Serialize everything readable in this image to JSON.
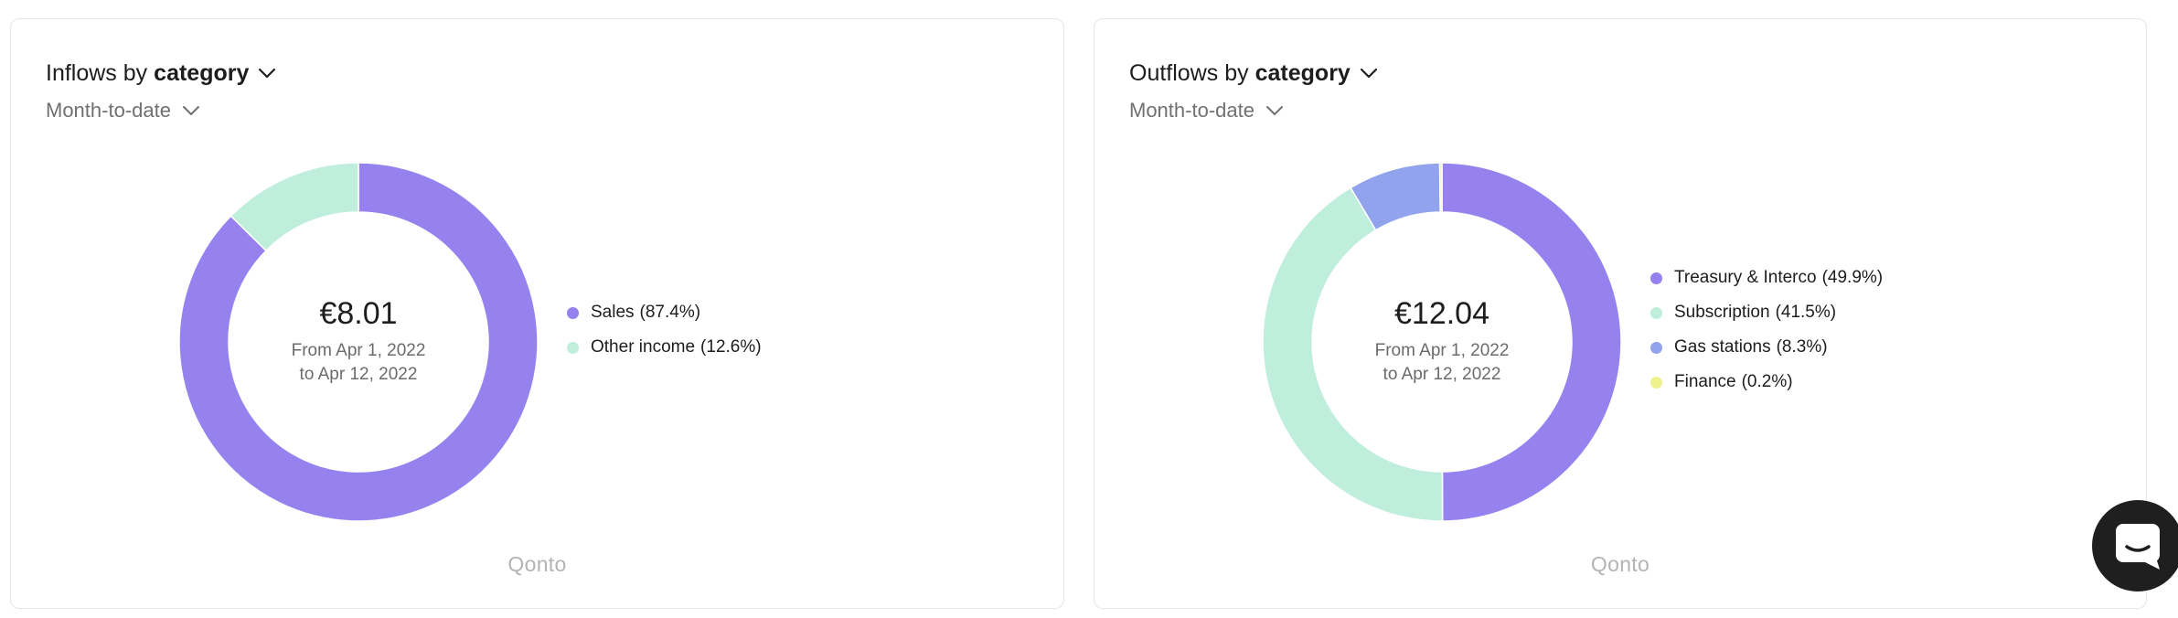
{
  "brand": "Qonto",
  "chart_data": [
    {
      "type": "pie",
      "title": "Inflows by",
      "dimension": "category",
      "period": "Month-to-date",
      "total": "€8.01",
      "range": [
        "From Apr 1, 2022",
        "to Apr 12, 2022"
      ],
      "legend_position": "right",
      "slices": [
        {
          "label": "Sales",
          "value": 87.4,
          "pct_label": "(87.4%)",
          "color": "#9682ee"
        },
        {
          "label": "Other income",
          "value": 12.6,
          "pct_label": "(12.6%)",
          "color": "#bfeedd"
        }
      ]
    },
    {
      "type": "pie",
      "title": "Outflows by",
      "dimension": "category",
      "period": "Month-to-date",
      "total": "€12.04",
      "range": [
        "From Apr 1, 2022",
        "to Apr 12, 2022"
      ],
      "legend_position": "right",
      "slices": [
        {
          "label": "Treasury & Interco",
          "value": 49.9,
          "pct_label": "(49.9%)",
          "color": "#9682ee"
        },
        {
          "label": "Subscription",
          "value": 41.5,
          "pct_label": "(41.5%)",
          "color": "#bfeedd"
        },
        {
          "label": "Gas stations",
          "value": 8.3,
          "pct_label": "(8.3%)",
          "color": "#92a3ee"
        },
        {
          "label": "Finance",
          "value": 0.2,
          "pct_label": "(0.2%)",
          "color": "#eef28a"
        }
      ]
    }
  ]
}
